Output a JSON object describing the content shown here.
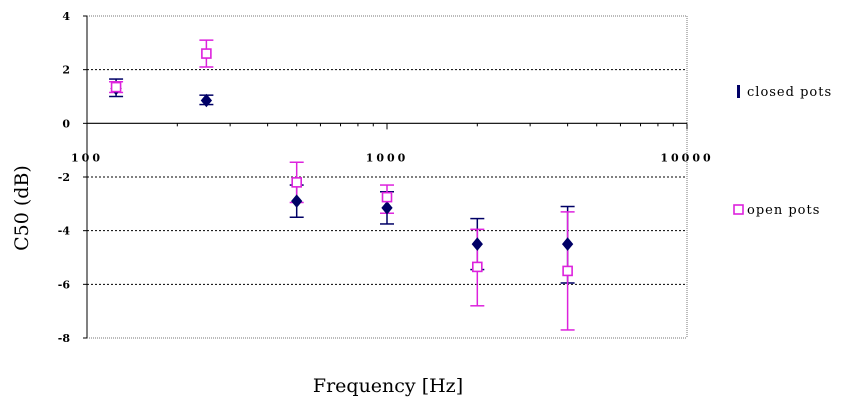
{
  "chart_data": {
    "type": "scatter",
    "xscale": "log",
    "xlim": [
      100,
      10000
    ],
    "ylim": [
      -8,
      4
    ],
    "xlabel": "Frequency [Hz]",
    "ylabel": "C50 (dB)",
    "x_ticks": [
      100,
      1000,
      10000
    ],
    "x_tick_labels": [
      "100",
      "1000",
      "10000"
    ],
    "y_ticks": [
      4,
      2,
      0,
      -2,
      -4,
      -6,
      -8
    ],
    "y_tick_labels": [
      "4",
      "2",
      "0",
      "-2",
      "-4",
      "-6",
      "-8"
    ],
    "grid": "horizontal dotted",
    "legend_position": "right",
    "series": [
      {
        "name": "closed pots",
        "color": "#000066",
        "marker": "filled-diamond",
        "x": [
          125,
          250,
          500,
          1000,
          2000,
          4000
        ],
        "y": [
          1.3,
          0.85,
          -2.9,
          -3.15,
          -4.5,
          -4.5
        ],
        "err_low": [
          1.0,
          0.7,
          -3.5,
          -3.75,
          -5.45,
          -5.95
        ],
        "err_high": [
          1.65,
          1.05,
          -2.3,
          -2.55,
          -3.55,
          -3.1
        ]
      },
      {
        "name": "open pots",
        "color": "#dd22dd",
        "marker": "open-square",
        "x": [
          125,
          250,
          500,
          1000,
          2000,
          4000
        ],
        "y": [
          1.35,
          2.6,
          -2.2,
          -2.75,
          -5.35,
          -5.5
        ],
        "err_low": [
          1.15,
          2.1,
          -2.95,
          -3.35,
          -6.8,
          -7.7
        ],
        "err_high": [
          1.55,
          3.1,
          -1.45,
          -2.3,
          -3.95,
          -3.3
        ]
      }
    ]
  }
}
